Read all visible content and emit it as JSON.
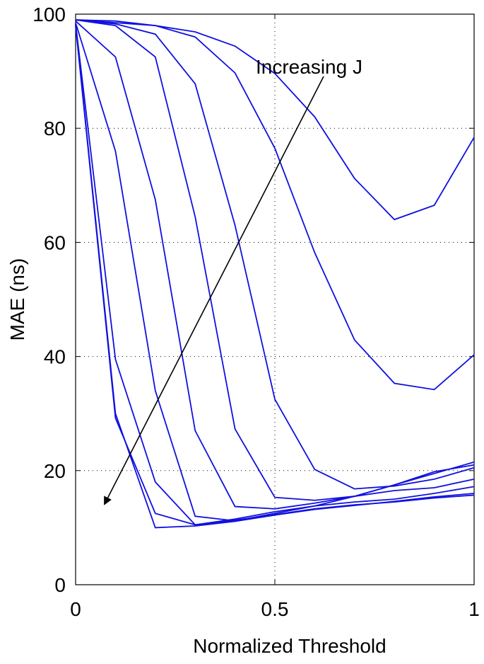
{
  "chart_data": {
    "type": "line",
    "xlabel": "Normalized Threshold",
    "ylabel": "MAE (ns)",
    "annotation": "Increasing J",
    "x": [
      0,
      0.1,
      0.2,
      0.3,
      0.4,
      0.5,
      0.6,
      0.7,
      0.8,
      0.9,
      1.0
    ],
    "series": [
      {
        "color": "#1010e0",
        "values": [
          99,
          98.8,
          98,
          96.9,
          94.4,
          89.6,
          82,
          71.2,
          64,
          66.5,
          78.4
        ]
      },
      {
        "color": "#1010e0",
        "values": [
          99,
          98.5,
          98,
          96,
          89.7,
          76.5,
          58.2,
          42.9,
          35.3,
          34.2,
          40.3
        ]
      },
      {
        "color": "#1010e0",
        "values": [
          99,
          98.3,
          96.5,
          87.8,
          63,
          32.5,
          20.2,
          16.8,
          17.3,
          18.5,
          20.5
        ]
      },
      {
        "color": "#1010e0",
        "values": [
          99,
          98,
          92.5,
          64.5,
          27.3,
          15.3,
          14.8,
          15.5,
          16.5,
          17,
          18.5
        ]
      },
      {
        "color": "#1010e0",
        "values": [
          98.8,
          92.5,
          67.5,
          27,
          13.7,
          13.3,
          14.3,
          15.5,
          17.5,
          19.5,
          21.5
        ]
      },
      {
        "color": "#1010e0",
        "values": [
          98.5,
          76,
          34,
          12,
          11.2,
          12.5,
          13.8,
          15.5,
          17.5,
          19.8,
          21
        ]
      },
      {
        "color": "#1010e0",
        "values": [
          98.3,
          39.5,
          18,
          10.5,
          11.5,
          12.8,
          13.8,
          14.5,
          15,
          16,
          17.2
        ]
      },
      {
        "color": "#1010e0",
        "values": [
          98,
          29.2,
          12.5,
          10.5,
          11.3,
          12.3,
          13.3,
          14,
          14.5,
          15.2,
          15.7
        ]
      },
      {
        "color": "#1010e0",
        "values": [
          98.2,
          30,
          10,
          10.3,
          11.1,
          12.2,
          13.2,
          13.9,
          14.6,
          15.4,
          16
        ]
      }
    ],
    "xlim": [
      0,
      1
    ],
    "ylim": [
      0,
      100
    ],
    "xticks": [
      0,
      0.5,
      1
    ],
    "yticks": [
      0,
      20,
      40,
      60,
      80,
      100
    ],
    "grid": true
  }
}
